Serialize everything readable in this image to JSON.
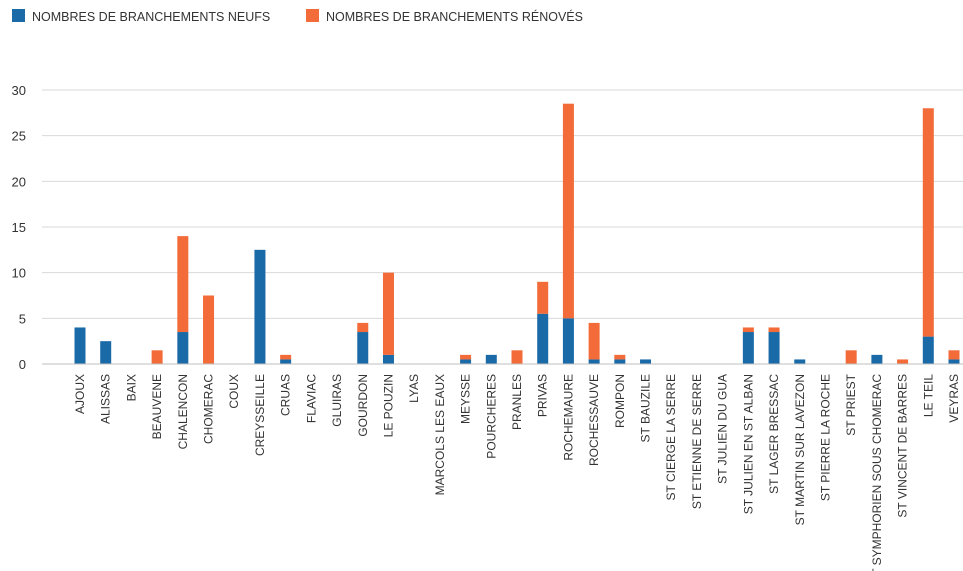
{
  "chart_data": {
    "type": "stacked_bar",
    "categories": [
      "AJOUX",
      "ALISSAS",
      "BAIX",
      "BEAUVENE",
      "CHALENCON",
      "CHOMERAC",
      "COUX",
      "CREYSSEILLE",
      "CRUAS",
      "FLAVIAC",
      "GLUIRAS",
      "GOURDON",
      "LE POUZIN",
      "LYAS",
      "MARCOLS LES EAUX",
      "MEYSSE",
      "POURCHERES",
      "PRANLES",
      "PRIVAS",
      "ROCHEMAURE",
      "ROCHESSAUVE",
      "ROMPON",
      "ST BAUZILE",
      "ST CIERGE LA SERRE",
      "ST ETIENNE DE SERRE",
      "ST JULIEN DU GUA",
      "ST JULIEN EN ST ALBAN",
      "ST LAGER BRESSAC",
      "ST MARTIN SUR LAVEZON",
      "ST PIERRE LA ROCHE",
      "ST PRIEST",
      "ST SYMPHORIEN SOUS CHOMERAC",
      "ST VINCENT DE BARRES",
      "LE TEIL",
      "VEYRAS"
    ],
    "series": [
      {
        "name": "NOMBRES DE BRANCHEMENTS NEUFS",
        "color": "#1a6aa8",
        "values": [
          4,
          2.5,
          0,
          0,
          3.5,
          0,
          0,
          12.5,
          0.5,
          0,
          0,
          3.5,
          1,
          0,
          0,
          0.5,
          1,
          0,
          5.5,
          5,
          0.5,
          0.5,
          0.5,
          0,
          0,
          0,
          3.5,
          3.5,
          0.5,
          0,
          0,
          1,
          0,
          3,
          0.5
        ]
      },
      {
        "name": "NOMBRES DE BRANCHEMENTS RÉNOVÉS",
        "color": "#f26b38",
        "values": [
          0,
          0,
          0,
          1.5,
          10.5,
          7.5,
          0,
          0,
          0.5,
          0,
          0,
          1,
          9,
          0,
          0,
          0.5,
          0,
          1.5,
          3.5,
          23.5,
          4,
          0.5,
          0,
          0,
          0,
          0,
          0.5,
          0.5,
          0,
          0,
          1.5,
          0,
          0.5,
          25,
          1
        ]
      }
    ],
    "ylim": [
      0,
      30
    ],
    "yticks": [
      0,
      5,
      10,
      15,
      20,
      25,
      30
    ],
    "grid": true,
    "legend": "top-left"
  }
}
